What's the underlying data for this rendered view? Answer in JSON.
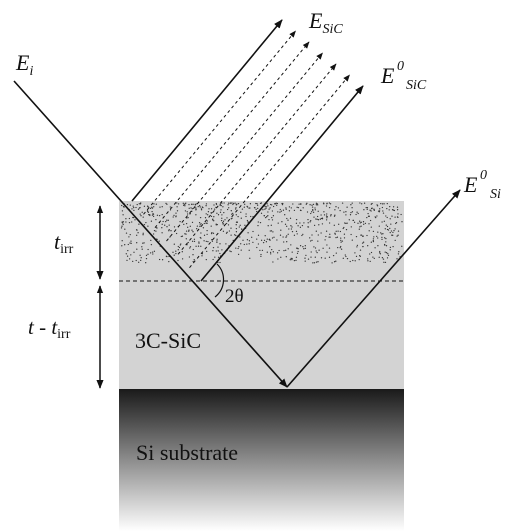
{
  "labels": {
    "incident": {
      "main": "E",
      "sub": "i"
    },
    "reflected_sic": {
      "main": "E",
      "sub": "SiC"
    },
    "reflected_sic0": {
      "main": "E",
      "sup": "0",
      "sub": "SiC"
    },
    "reflected_si0": {
      "main": "E",
      "sup": "0",
      "sub": "Si"
    },
    "t_irr": {
      "main": "t",
      "sub": "irr"
    },
    "t_minus_tirr": {
      "main": "t - t",
      "sub": "irr"
    },
    "angle": "2θ",
    "layer_sic": "3C-SiC",
    "layer_si": "Si substrate"
  },
  "colors": {
    "line": "#111111",
    "sic_layer": "#d3d3d3",
    "substrate_top": "#1a1a1a",
    "substrate_bottom": "#ffffff",
    "dots": "#333333"
  }
}
